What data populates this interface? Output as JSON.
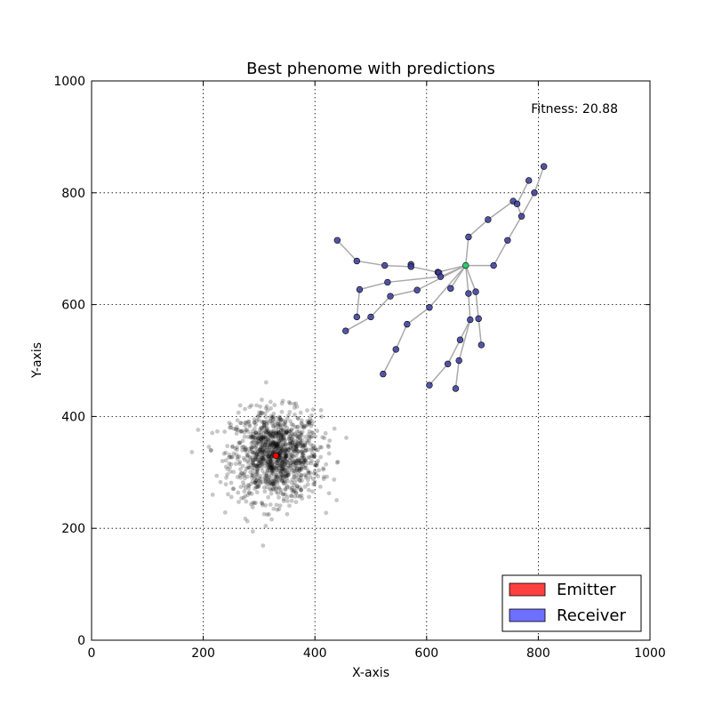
{
  "chart_data": {
    "type": "scatter",
    "title": "Best phenome with predictions",
    "xlabel": "X-axis",
    "ylabel": "Y-axis",
    "xlim": [
      0,
      1000
    ],
    "ylim": [
      0,
      1000
    ],
    "xticks": [
      0,
      200,
      400,
      600,
      800,
      1000
    ],
    "yticks": [
      0,
      200,
      400,
      600,
      800,
      1000
    ],
    "xtick_labels": [
      "0",
      "200",
      "400",
      "600",
      "800",
      "1000"
    ],
    "ytick_labels": [
      "0",
      "200",
      "400",
      "600",
      "800",
      "1000"
    ],
    "grid": true,
    "grid_style": "dotted",
    "legend_position": "bottom-right",
    "annotation": "Fitness: 20.88",
    "colors": {
      "emitter": "#ff0000",
      "receiver": "#3a3a9a",
      "root": "#2ecc71",
      "edge": "#aaaaaa",
      "prediction": "#000000",
      "legend_emitter": "#ff4040",
      "legend_receiver": "#6f6fff"
    },
    "series": [
      {
        "name": "Emitter",
        "points": [
          [
            330,
            330
          ]
        ]
      },
      {
        "name": "Receiver",
        "root": [
          670,
          670
        ],
        "points": [
          [
            670,
            670
          ],
          [
            440,
            715
          ],
          [
            475,
            678
          ],
          [
            525,
            670
          ],
          [
            572,
            672
          ],
          [
            572,
            668
          ],
          [
            620,
            658
          ],
          [
            622,
            657
          ],
          [
            625,
            650
          ],
          [
            480,
            627
          ],
          [
            530,
            640
          ],
          [
            535,
            615
          ],
          [
            583,
            626
          ],
          [
            643,
            629
          ],
          [
            605,
            595
          ],
          [
            475,
            578
          ],
          [
            500,
            578
          ],
          [
            455,
            553
          ],
          [
            565,
            565
          ],
          [
            545,
            520
          ],
          [
            522,
            476
          ],
          [
            675,
            620
          ],
          [
            688,
            623
          ],
          [
            678,
            573
          ],
          [
            693,
            575
          ],
          [
            660,
            537
          ],
          [
            698,
            528
          ],
          [
            638,
            494
          ],
          [
            658,
            500
          ],
          [
            605,
            456
          ],
          [
            652,
            450
          ],
          [
            675,
            721
          ],
          [
            710,
            752
          ],
          [
            720,
            670
          ],
          [
            745,
            715
          ],
          [
            755,
            785
          ],
          [
            762,
            780
          ],
          [
            770,
            758
          ],
          [
            783,
            822
          ],
          [
            793,
            800
          ],
          [
            810,
            847
          ]
        ],
        "edges": [
          [
            [
              440,
              715
            ],
            [
              475,
              678
            ]
          ],
          [
            [
              475,
              678
            ],
            [
              525,
              670
            ]
          ],
          [
            [
              525,
              670
            ],
            [
              572,
              668
            ]
          ],
          [
            [
              572,
              668
            ],
            [
              572,
              672
            ]
          ],
          [
            [
              572,
              668
            ],
            [
              620,
              658
            ]
          ],
          [
            [
              620,
              658
            ],
            [
              622,
              657
            ]
          ],
          [
            [
              622,
              657
            ],
            [
              625,
              650
            ]
          ],
          [
            [
              620,
              658
            ],
            [
              670,
              670
            ]
          ],
          [
            [
              625,
              650
            ],
            [
              670,
              670
            ]
          ],
          [
            [
              480,
              627
            ],
            [
              530,
              640
            ]
          ],
          [
            [
              530,
              640
            ],
            [
              625,
              650
            ]
          ],
          [
            [
              535,
              615
            ],
            [
              583,
              626
            ]
          ],
          [
            [
              583,
              626
            ],
            [
              670,
              670
            ]
          ],
          [
            [
              643,
              629
            ],
            [
              670,
              670
            ]
          ],
          [
            [
              605,
              595
            ],
            [
              670,
              670
            ]
          ],
          [
            [
              475,
              578
            ],
            [
              480,
              627
            ]
          ],
          [
            [
              500,
              578
            ],
            [
              535,
              615
            ]
          ],
          [
            [
              455,
              553
            ],
            [
              500,
              578
            ]
          ],
          [
            [
              565,
              565
            ],
            [
              605,
              595
            ]
          ],
          [
            [
              545,
              520
            ],
            [
              565,
              565
            ]
          ],
          [
            [
              522,
              476
            ],
            [
              545,
              520
            ]
          ],
          [
            [
              675,
              620
            ],
            [
              670,
              670
            ]
          ],
          [
            [
              688,
              623
            ],
            [
              670,
              670
            ]
          ],
          [
            [
              678,
              573
            ],
            [
              675,
              620
            ]
          ],
          [
            [
              693,
              575
            ],
            [
              688,
              623
            ]
          ],
          [
            [
              660,
              537
            ],
            [
              678,
              573
            ]
          ],
          [
            [
              698,
              528
            ],
            [
              693,
              575
            ]
          ],
          [
            [
              638,
              494
            ],
            [
              660,
              537
            ]
          ],
          [
            [
              658,
              500
            ],
            [
              678,
              573
            ]
          ],
          [
            [
              605,
              456
            ],
            [
              638,
              494
            ]
          ],
          [
            [
              652,
              450
            ],
            [
              658,
              500
            ]
          ],
          [
            [
              675,
              721
            ],
            [
              670,
              670
            ]
          ],
          [
            [
              710,
              752
            ],
            [
              675,
              721
            ]
          ],
          [
            [
              755,
              785
            ],
            [
              710,
              752
            ]
          ],
          [
            [
              720,
              670
            ],
            [
              670,
              670
            ]
          ],
          [
            [
              745,
              715
            ],
            [
              720,
              670
            ]
          ],
          [
            [
              770,
              758
            ],
            [
              745,
              715
            ]
          ],
          [
            [
              762,
              780
            ],
            [
              770,
              758
            ]
          ],
          [
            [
              755,
              785
            ],
            [
              762,
              780
            ]
          ],
          [
            [
              793,
              800
            ],
            [
              770,
              758
            ]
          ],
          [
            [
              810,
              847
            ],
            [
              793,
              800
            ]
          ],
          [
            [
              783,
              822
            ],
            [
              762,
              780
            ]
          ]
        ]
      },
      {
        "cloud": {
          "center": [
            330,
            330
          ],
          "spread": 40,
          "count": 1200,
          "seed": 12345
        }
      }
    ]
  }
}
